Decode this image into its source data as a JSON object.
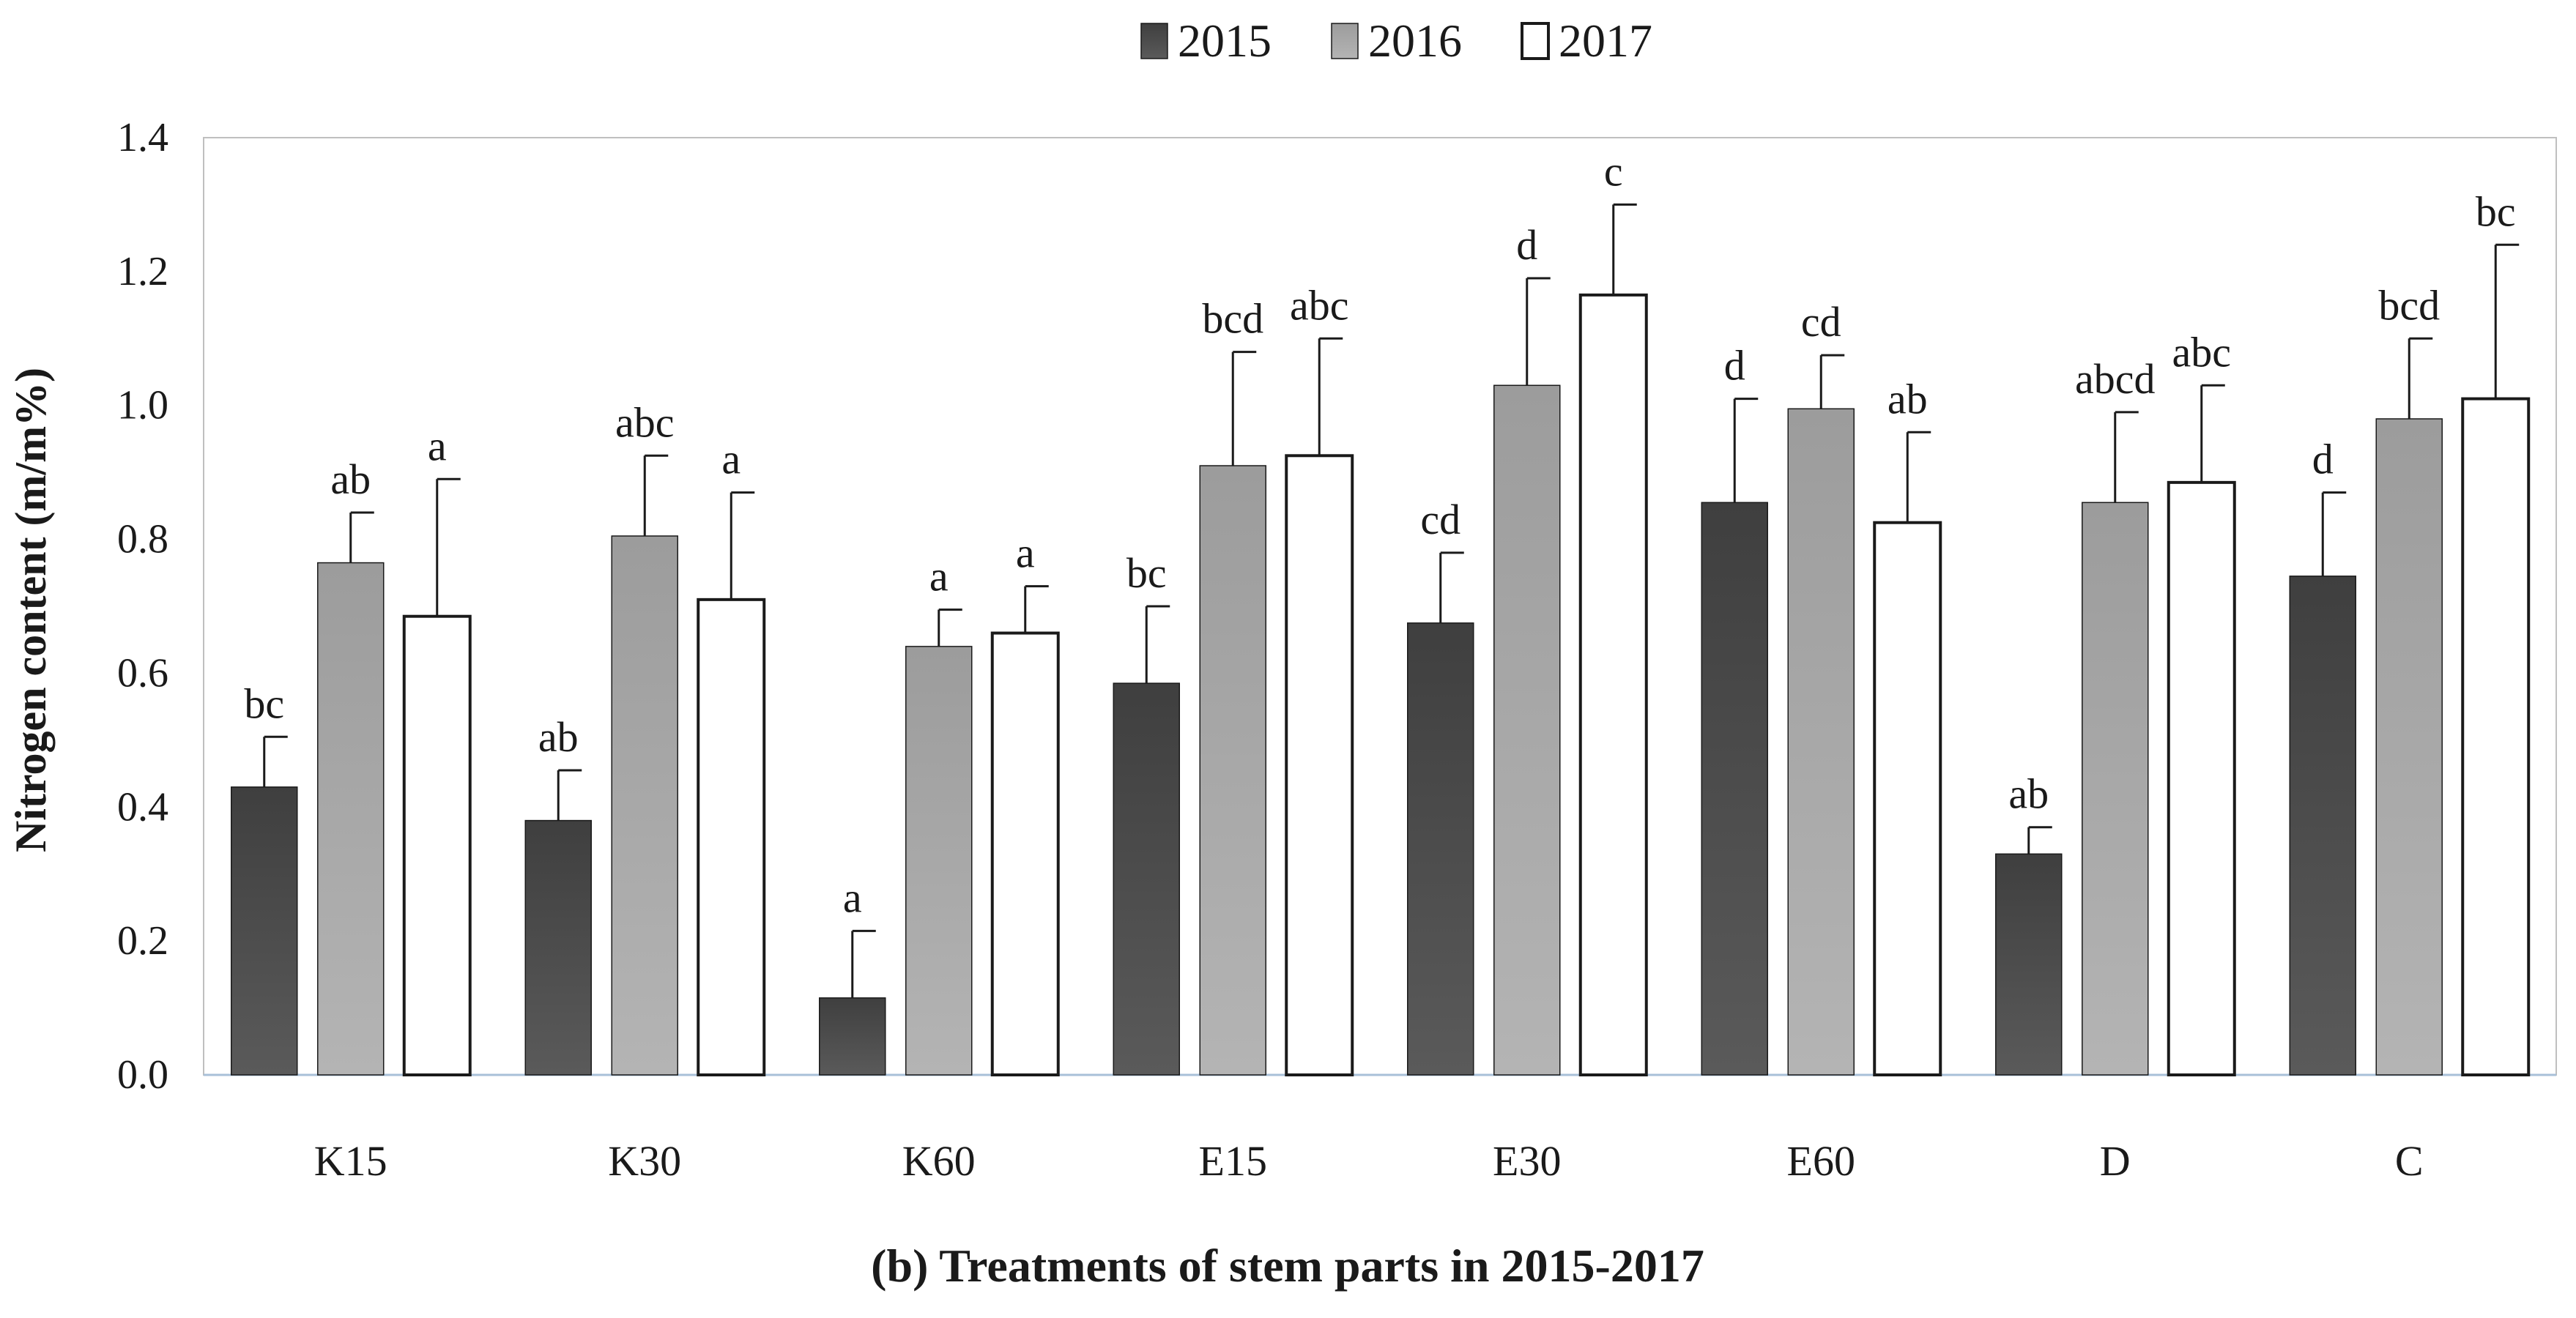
{
  "chart_data": {
    "type": "bar",
    "title": "",
    "xlabel": "(b) Treatments of stem parts in 2015-2017",
    "ylabel": "Nitrogen content (m/m%)",
    "ylim": [
      0,
      1.4
    ],
    "yticks": [
      "0.0",
      "0.2",
      "0.4",
      "0.6",
      "0.8",
      "1.0",
      "1.2",
      "1.4"
    ],
    "categories": [
      "K15",
      "K30",
      "K60",
      "E15",
      "E30",
      "E60",
      "D",
      "C"
    ],
    "legend_position": "top-center",
    "series": [
      {
        "name": "2015",
        "color": "#4a4a4a",
        "values": [
          0.43,
          0.38,
          0.115,
          0.585,
          0.675,
          0.855,
          0.33,
          0.745
        ],
        "errors": [
          0.075,
          0.075,
          0.1,
          0.115,
          0.105,
          0.155,
          0.04,
          0.125
        ],
        "labels": [
          "bc",
          "ab",
          "a",
          "bc",
          "cd",
          "d",
          "ab",
          "d"
        ]
      },
      {
        "name": "2016",
        "color": "#a6a6a6",
        "values": [
          0.765,
          0.805,
          0.64,
          0.91,
          1.03,
          0.995,
          0.855,
          0.98
        ],
        "errors": [
          0.075,
          0.12,
          0.055,
          0.17,
          0.16,
          0.08,
          0.135,
          0.12
        ],
        "labels": [
          "ab",
          "abc",
          "a",
          "bcd",
          "d",
          "cd",
          "abcd",
          "bcd"
        ]
      },
      {
        "name": "2017",
        "color": "#ffffff",
        "values": [
          0.685,
          0.71,
          0.66,
          0.925,
          1.165,
          0.825,
          0.885,
          1.01
        ],
        "errors": [
          0.205,
          0.16,
          0.07,
          0.175,
          0.135,
          0.135,
          0.145,
          0.23
        ],
        "labels": [
          "a",
          "a",
          "a",
          "abc",
          "c",
          "ab",
          "abc",
          "bc"
        ]
      }
    ]
  }
}
